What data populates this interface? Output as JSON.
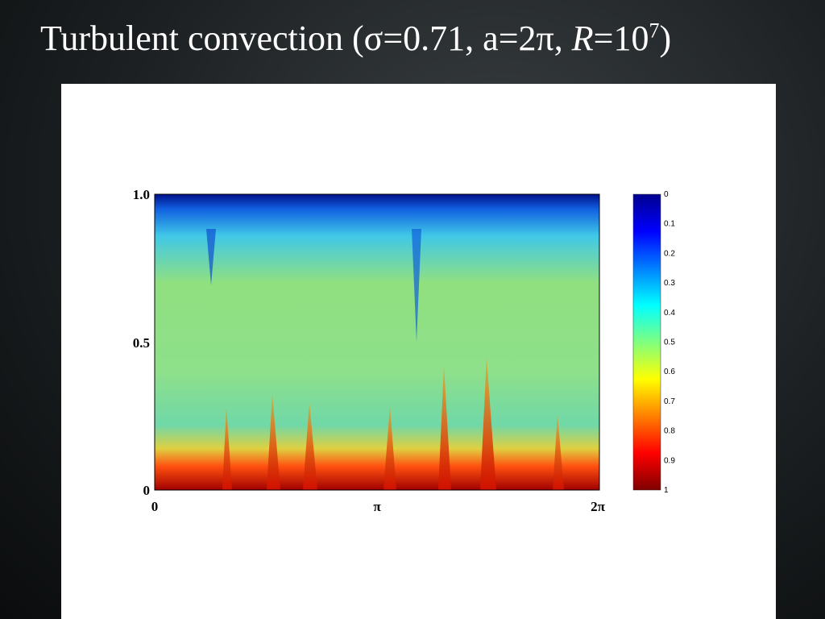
{
  "slide": {
    "title": {
      "main": "Turbulent convection (σ=0.71, a=2π, ",
      "italic": "R",
      "rest": "=10",
      "sup": "7",
      "close": ")"
    }
  },
  "plot": {
    "yticks": [
      "1.0",
      "0.5",
      "0"
    ],
    "xticks": [
      "0",
      "π",
      "2π"
    ],
    "colorbar": [
      "0",
      "0.1",
      "0.2",
      "0.3",
      "0.4",
      "0.5",
      "0.6",
      "0.7",
      "0.8",
      "0.9",
      "1"
    ]
  }
}
